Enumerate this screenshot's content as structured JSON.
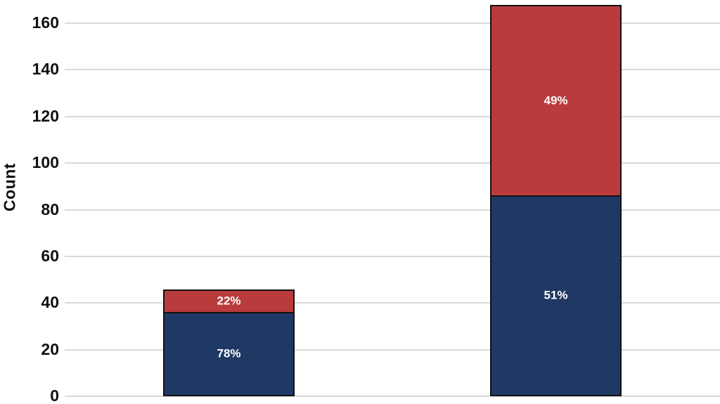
{
  "chart_data": {
    "type": "bar",
    "stacked": true,
    "title": "",
    "xlabel": "",
    "ylabel": "Count",
    "ylim": [
      0,
      169
    ],
    "yticks": [
      0,
      20,
      40,
      60,
      80,
      100,
      120,
      140,
      160
    ],
    "grid": true,
    "legend": "none",
    "categories": [
      "",
      ""
    ],
    "totals": [
      46,
      168
    ],
    "series": [
      {
        "name": "bottom-segment",
        "color": "#1F3864",
        "values": [
          36,
          86
        ],
        "labels": [
          "78%",
          "51%"
        ],
        "label_color": "#ffffff"
      },
      {
        "name": "top-segment",
        "color": "#B93B3B",
        "values": [
          10,
          82
        ],
        "labels": [
          "22%",
          "49%"
        ],
        "label_color": "#ffffff"
      }
    ],
    "gridline_color": "#d9d9d9",
    "outline_color": "#121212",
    "axis_text_color": "#111111"
  }
}
